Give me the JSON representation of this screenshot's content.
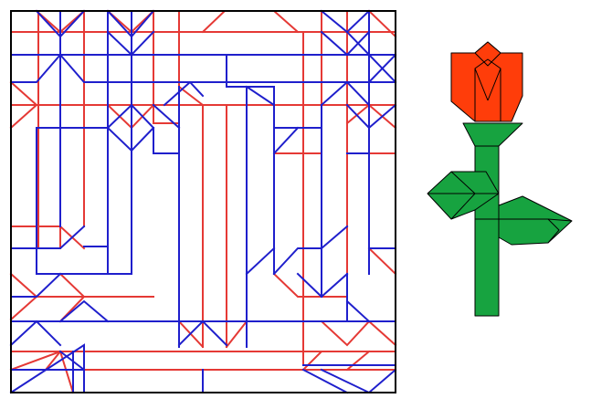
{
  "colors": {
    "background": "#ffffff",
    "paper_border": "#000000",
    "mountain_fold": "#e53935",
    "valley_fold": "#1f1fcc",
    "petal": "#ff3d0a",
    "stem_leaf": "#17a340",
    "outline": "#000000"
  },
  "figure": {
    "crease_pattern": {
      "kind": "origami crease pattern",
      "line_types": [
        "mountain-fold",
        "valley-fold"
      ]
    },
    "model": {
      "kind": "folded rose",
      "parts": [
        "blossom",
        "sepal",
        "stem",
        "left-leaf",
        "right-leaf"
      ]
    }
  }
}
